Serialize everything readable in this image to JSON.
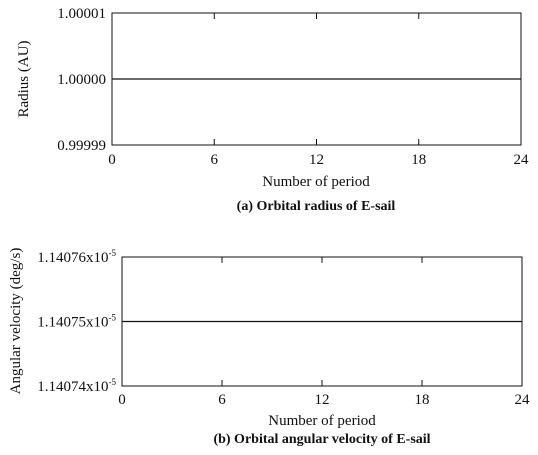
{
  "chart_data": [
    {
      "type": "line",
      "title": "(a) Orbital radius of E-sail",
      "xlabel": "Number of period",
      "ylabel": "Radius (AU)",
      "xlim": [
        0,
        24
      ],
      "ylim": [
        0.99999,
        1.00001
      ],
      "x_ticks": [
        0,
        6,
        12,
        18,
        24
      ],
      "x_tick_labels": [
        "0",
        "6",
        "12",
        "18",
        "24"
      ],
      "y_tick_labels": [
        "0.99999",
        "1.00000",
        "1.00001"
      ],
      "y_tick_values": [
        0.99999,
        1.0,
        1.00001
      ],
      "grid": false,
      "series": [
        {
          "x": [
            0,
            24
          ],
          "y": [
            1.0,
            1.0
          ]
        }
      ]
    },
    {
      "type": "line",
      "title": "(b) Orbital angular velocity of E-sail",
      "xlabel": "Number of period",
      "ylabel": "Angular velocity (deg/s)",
      "xlim": [
        0,
        24
      ],
      "ylim": [
        1.14074e-05,
        1.14076e-05
      ],
      "x_ticks": [
        0,
        6,
        12,
        18,
        24
      ],
      "x_tick_labels": [
        "0",
        "6",
        "12",
        "18",
        "24"
      ],
      "y_tick_labels": [
        {
          "mantissa": "1.14074x10",
          "exponent": "-5"
        },
        {
          "mantissa": "1.14075x10",
          "exponent": "-5"
        },
        {
          "mantissa": "1.14076x10",
          "exponent": "-5"
        }
      ],
      "y_tick_values": [
        1.14074e-05,
        1.14075e-05,
        1.14076e-05
      ],
      "grid": false,
      "series": [
        {
          "x": [
            0,
            1,
            2,
            3,
            4,
            5,
            6,
            7,
            8,
            9,
            10,
            11,
            12,
            13,
            14,
            15,
            15.5,
            16,
            16.5,
            17,
            17.5,
            18,
            18.5,
            19,
            19.5,
            20,
            20.5,
            21,
            21.5,
            22,
            22.5,
            23,
            23.5,
            24
          ],
          "y": [
            1.14075e-05,
            1.14075e-05,
            1.14075e-05,
            1.14075e-05,
            1.14075e-05,
            1.14075e-05,
            1.14075e-05,
            1.14075e-05,
            1.14075e-05,
            1.14075e-05,
            1.14075e-05,
            1.14075e-05,
            1.14075e-05,
            1.14075e-05,
            1.14075e-05,
            1.14075e-05,
            1.140749998e-05,
            1.140750002e-05,
            1.140749998e-05,
            1.140750002e-05,
            1.140749998e-05,
            1.140750002e-05,
            1.140749998e-05,
            1.140750002e-05,
            1.140749998e-05,
            1.140750002e-05,
            1.140749998e-05,
            1.140750002e-05,
            1.140749998e-05,
            1.140750002e-05,
            1.140749998e-05,
            1.140750002e-05,
            1.140749998e-05,
            1.14075e-05
          ]
        }
      ]
    }
  ]
}
